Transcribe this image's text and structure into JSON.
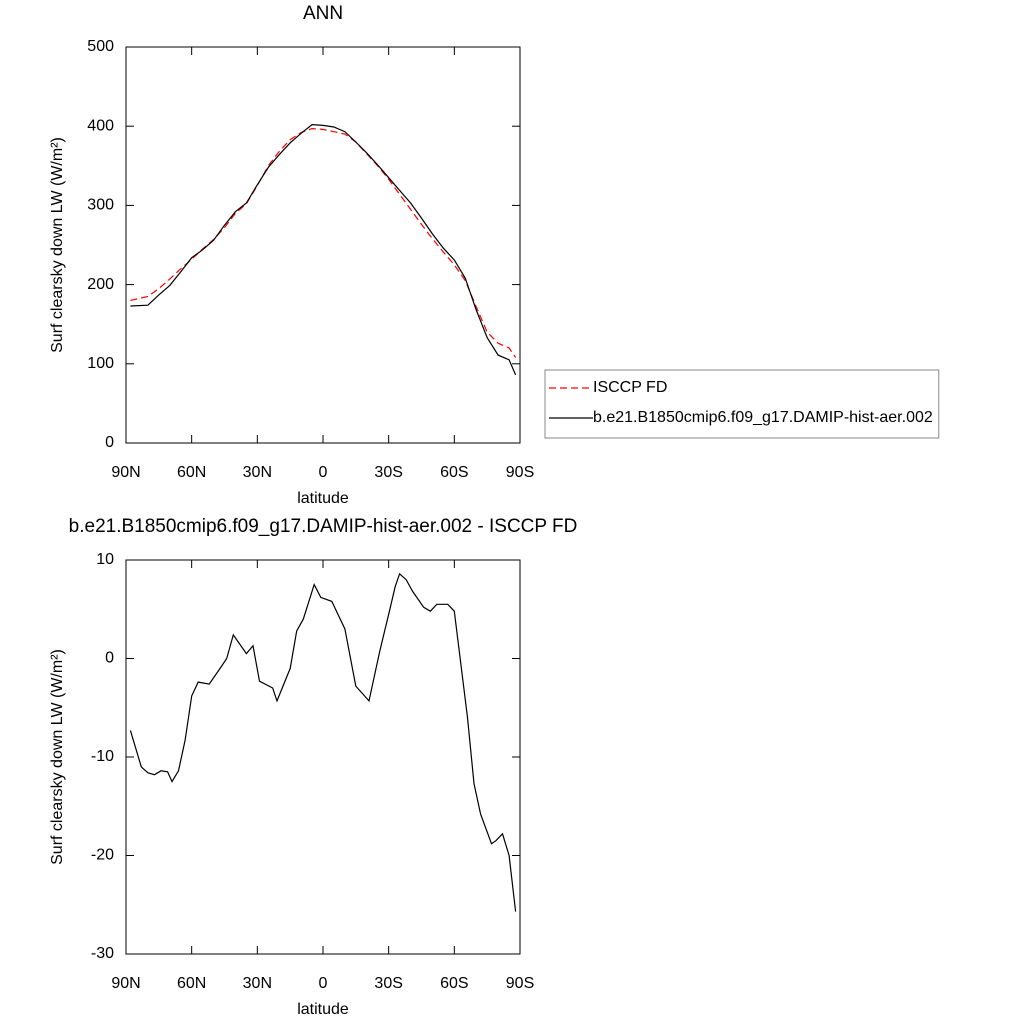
{
  "chart_data": [
    {
      "type": "line",
      "title": "ANN",
      "xlabel": "latitude",
      "ylabel": "Surf clearsky down LW (W/m²)",
      "x": [
        88,
        80,
        75,
        70,
        65,
        60,
        55,
        50,
        45,
        40,
        35,
        30,
        25,
        20,
        15,
        10,
        5,
        0,
        -5,
        -10,
        -15,
        -20,
        -25,
        -30,
        -35,
        -40,
        -45,
        -50,
        -55,
        -60,
        -65,
        -70,
        -75,
        -80,
        -85,
        -88
      ],
      "series": [
        {
          "name": "ISCCP FD",
          "color": "#ff0000",
          "line_style": "dashed",
          "values": [
            180,
            185,
            195,
            207,
            220,
            232,
            245,
            257,
            272,
            290,
            302,
            325,
            350,
            368,
            383,
            392,
            397,
            396,
            393,
            390,
            380,
            365,
            350,
            333,
            314,
            295,
            276,
            258,
            241,
            225,
            205,
            172,
            140,
            126,
            120,
            108
          ]
        },
        {
          "name": "b.e21.B1850cmip6.f09_g17.DAMIP-hist-aer.002",
          "color": "#000000",
          "line_style": "solid",
          "values": [
            173,
            174,
            187,
            199,
            216,
            234,
            244,
            256,
            275,
            292,
            303,
            326,
            348,
            364,
            379,
            391,
            402,
            401,
            399,
            393,
            380,
            366,
            351,
            335,
            319,
            303,
            284,
            264,
            246,
            231,
            208,
            168,
            133,
            111,
            105,
            86
          ]
        }
      ],
      "xlim": [
        90,
        -90
      ],
      "xticks": [
        {
          "value": 90,
          "label": "90N"
        },
        {
          "value": 60,
          "label": "60N"
        },
        {
          "value": 30,
          "label": "30N"
        },
        0,
        {
          "value": -30,
          "label": "30S"
        },
        {
          "value": -60,
          "label": "60S"
        },
        {
          "value": -90,
          "label": "90S"
        }
      ],
      "ylim": [
        0,
        500
      ],
      "yticks": [
        0,
        100,
        200,
        300,
        400,
        500
      ],
      "legend": "right"
    },
    {
      "type": "line",
      "title": "b.e21.B1850cmip6.f09_g17.DAMIP-hist-aer.002 - ISCCP FD",
      "xlabel": "latitude",
      "ylabel": "Surf clearsky down LW (W/m²)",
      "x": [
        88,
        83,
        80,
        77,
        74,
        71,
        69,
        66,
        63,
        60,
        57,
        52,
        47,
        44,
        41,
        35,
        32,
        29,
        23,
        21,
        15,
        12,
        9,
        4,
        1,
        -4,
        -10,
        -15,
        -21,
        -26,
        -30,
        -33,
        -35,
        -38,
        -41,
        -46,
        -49,
        -52,
        -57,
        -60,
        -62,
        -66,
        -69,
        -72,
        -77,
        -79,
        -82,
        -85,
        -88
      ],
      "series": [
        {
          "color": "#000000",
          "line_style": "solid",
          "values": [
            -7.3,
            -11,
            -11.6,
            -11.8,
            -11.4,
            -11.5,
            -12.5,
            -11.4,
            -8.3,
            -3.8,
            -2.4,
            -2.6,
            -1,
            0,
            2.4,
            0.5,
            1.3,
            -2.3,
            -3,
            -4.3,
            -1,
            2.8,
            4,
            7.5,
            6.2,
            5.8,
            3,
            -2.8,
            -4.3,
            0.8,
            4.5,
            7.3,
            8.6,
            8,
            6.8,
            5.2,
            4.8,
            5.5,
            5.5,
            4.8,
            1.2,
            -6,
            -12.7,
            -15.8,
            -18.8,
            -18.5,
            -17.8,
            -20,
            -25.7
          ]
        }
      ],
      "xlim": [
        90,
        -90
      ],
      "xticks": [
        {
          "value": 90,
          "label": "90N"
        },
        {
          "value": 60,
          "label": "60N"
        },
        {
          "value": 30,
          "label": "30N"
        },
        0,
        {
          "value": -30,
          "label": "30S"
        },
        {
          "value": -60,
          "label": "60S"
        },
        {
          "value": -90,
          "label": "90S"
        }
      ],
      "ylim": [
        -30,
        10
      ],
      "yticks": [
        -30,
        -20,
        -10,
        0,
        10
      ]
    }
  ]
}
